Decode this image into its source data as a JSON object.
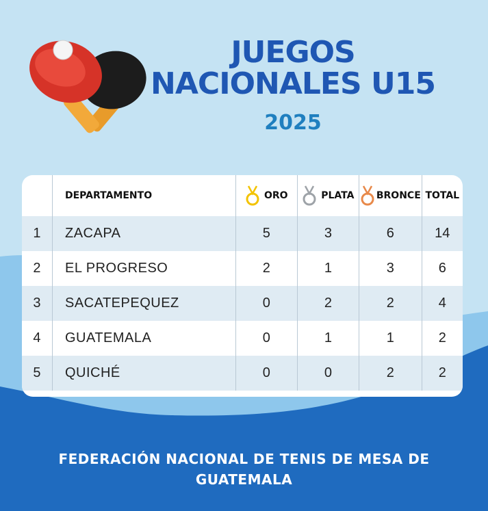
{
  "header": {
    "title_line1": "JUEGOS",
    "title_line2": "NACIONALES U15",
    "year": "2025"
  },
  "table": {
    "columns": {
      "rank": "",
      "department": "DEPARTAMENTO",
      "gold": "ORO",
      "silver": "PLATA",
      "bronze": "BRONCE",
      "total": "TOTAL"
    },
    "rows": [
      {
        "rank": "1",
        "department": "ZACAPA",
        "gold": "5",
        "silver": "3",
        "bronze": "6",
        "total": "14"
      },
      {
        "rank": "2",
        "department": "EL PROGRESO",
        "gold": "2",
        "silver": "1",
        "bronze": "3",
        "total": "6"
      },
      {
        "rank": "3",
        "department": "SACATEPEQUEZ",
        "gold": "0",
        "silver": "2",
        "bronze": "2",
        "total": "4"
      },
      {
        "rank": "4",
        "department": "GUATEMALA",
        "gold": "0",
        "silver": "1",
        "bronze": "1",
        "total": "2"
      },
      {
        "rank": "5",
        "department": "QUICHÉ",
        "gold": "0",
        "silver": "0",
        "bronze": "2",
        "total": "2"
      }
    ]
  },
  "footer": {
    "line1": "FEDERACIÓN NACIONAL DE TENIS DE MESA DE",
    "line2": "GUATEMALA"
  },
  "colors": {
    "background": "#c5e3f3",
    "title": "#1f57b3",
    "year": "#1f7fbf",
    "footer_band": "#1f6bbf",
    "gold": "#f3c300",
    "silver": "#9ea3a8",
    "bronze": "#e8894a"
  },
  "icons": [
    "ping-pong-paddles-icon",
    "gold-medal-icon",
    "silver-medal-icon",
    "bronze-medal-icon"
  ]
}
